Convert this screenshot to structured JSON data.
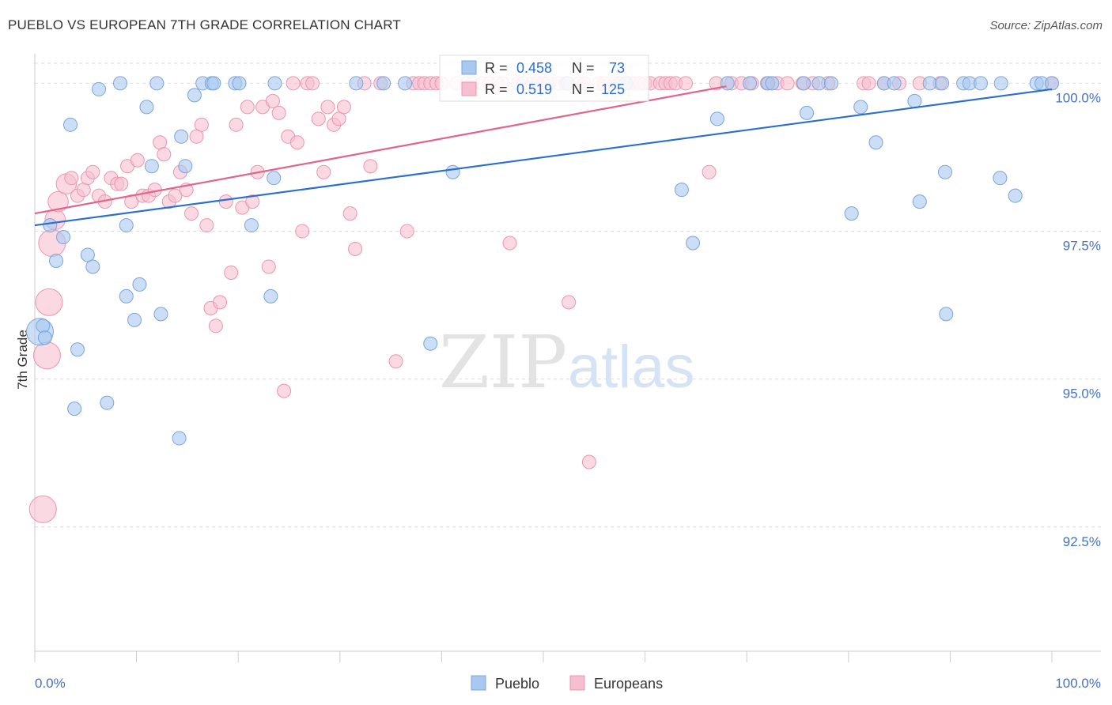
{
  "header": {
    "title": "PUEBLO VS EUROPEAN 7TH GRADE CORRELATION CHART",
    "source": "Source: ZipAtlas.com"
  },
  "watermark": {
    "zip": "ZIP",
    "atlas": "atlas"
  },
  "colors": {
    "pueblo_fill": "#a9c8ef",
    "pueblo_stroke": "#7aa5de",
    "pueblo_line": "#2a6fcf",
    "europeans_fill": "#f6bfd0",
    "europeans_stroke": "#ec95b0",
    "europeans_line": "#e0648e",
    "tick_text": "#4472c4",
    "grid": "#dddddd"
  },
  "legend": {
    "r_label": "R =",
    "n_label": "N =",
    "pueblo_r": "0.458",
    "pueblo_n": "73",
    "europeans_r": "0.519",
    "europeans_n": "125"
  },
  "chart_data": {
    "type": "scatter",
    "ylabel": "7th Grade",
    "xlim": [
      0,
      100
    ],
    "ylim": [
      90.4,
      100.5
    ],
    "x_tick_labels": [
      "0.0%",
      "100.0%"
    ],
    "y_ticks": [
      {
        "value": 92.5,
        "label": "92.5%"
      },
      {
        "value": 95.0,
        "label": "95.0%"
      },
      {
        "value": 97.5,
        "label": "97.5%"
      },
      {
        "value": 100.0,
        "label": "100.0%"
      }
    ],
    "grid": true,
    "series": [
      {
        "name": "Pueblo",
        "trend": {
          "x": [
            0,
            100
          ],
          "y": [
            97.6,
            99.9
          ]
        },
        "points": [
          [
            0.5,
            95.8,
            2
          ],
          [
            0.8,
            95.9,
            1
          ],
          [
            1.0,
            95.7,
            1
          ],
          [
            1.5,
            97.6,
            1
          ],
          [
            2.1,
            97.0,
            1
          ],
          [
            2.8,
            97.4,
            1
          ],
          [
            3.5,
            99.3,
            1
          ],
          [
            3.9,
            94.5,
            1
          ],
          [
            4.2,
            95.5,
            1
          ],
          [
            5.2,
            97.1,
            1
          ],
          [
            5.7,
            96.9,
            1
          ],
          [
            6.3,
            99.9,
            1
          ],
          [
            7.1,
            94.6,
            1
          ],
          [
            8.4,
            100.0,
            1
          ],
          [
            9.0,
            97.6,
            1
          ],
          [
            9.0,
            96.4,
            1
          ],
          [
            9.8,
            96.0,
            1
          ],
          [
            10.3,
            96.6,
            1
          ],
          [
            11.0,
            99.6,
            1
          ],
          [
            11.5,
            98.6,
            1
          ],
          [
            12.0,
            100.0,
            1
          ],
          [
            12.4,
            96.1,
            1
          ],
          [
            14.2,
            94.0,
            1
          ],
          [
            14.4,
            99.1,
            1
          ],
          [
            14.8,
            98.6,
            1
          ],
          [
            15.7,
            99.8,
            1
          ],
          [
            16.5,
            100.0,
            1
          ],
          [
            17.4,
            100.0,
            1
          ],
          [
            17.6,
            100.0,
            1
          ],
          [
            19.7,
            100.0,
            1
          ],
          [
            20.1,
            100.0,
            1
          ],
          [
            21.3,
            97.6,
            1
          ],
          [
            23.2,
            96.4,
            1
          ],
          [
            23.5,
            98.4,
            1
          ],
          [
            23.6,
            100.0,
            1
          ],
          [
            31.6,
            100.0,
            1
          ],
          [
            34.3,
            100.0,
            1
          ],
          [
            36.4,
            100.0,
            1
          ],
          [
            38.9,
            95.6,
            1
          ],
          [
            41.1,
            98.5,
            1
          ],
          [
            52.4,
            100.0,
            1
          ],
          [
            58.1,
            100.0,
            1
          ],
          [
            63.6,
            98.2,
            1
          ],
          [
            64.7,
            97.3,
            1
          ],
          [
            67.1,
            99.4,
            1
          ],
          [
            68.1,
            100.0,
            1
          ],
          [
            70.3,
            100.0,
            1
          ],
          [
            72.1,
            100.0,
            1
          ],
          [
            72.5,
            100.0,
            1
          ],
          [
            75.6,
            100.0,
            1
          ],
          [
            75.9,
            99.5,
            1
          ],
          [
            77.1,
            100.0,
            1
          ],
          [
            78.3,
            100.0,
            1
          ],
          [
            80.3,
            97.8,
            1
          ],
          [
            81.2,
            99.6,
            1
          ],
          [
            82.7,
            99.0,
            1
          ],
          [
            83.5,
            100.0,
            1
          ],
          [
            84.5,
            100.0,
            1
          ],
          [
            86.5,
            99.7,
            1
          ],
          [
            87.0,
            98.0,
            1
          ],
          [
            88.0,
            100.0,
            1
          ],
          [
            89.2,
            100.0,
            1
          ],
          [
            89.5,
            98.5,
            1
          ],
          [
            89.6,
            96.1,
            1
          ],
          [
            91.3,
            100.0,
            1
          ],
          [
            91.9,
            100.0,
            1
          ],
          [
            93.0,
            100.0,
            1
          ],
          [
            94.9,
            98.4,
            1
          ],
          [
            95.0,
            100.0,
            1
          ],
          [
            96.4,
            98.1,
            1
          ],
          [
            98.5,
            100.0,
            1
          ],
          [
            99.0,
            100.0,
            1
          ],
          [
            100.0,
            100.0,
            1
          ]
        ]
      },
      {
        "name": "Europeans",
        "trend": {
          "x": [
            0,
            68
          ],
          "y": [
            97.8,
            99.95
          ]
        },
        "points": [
          [
            0.8,
            92.8,
            2
          ],
          [
            1.2,
            95.4,
            2
          ],
          [
            1.4,
            96.3,
            2
          ],
          [
            1.7,
            97.3,
            2
          ],
          [
            2.0,
            97.7,
            1.5
          ],
          [
            2.3,
            98.0,
            1.5
          ],
          [
            3.1,
            98.3,
            1.5
          ],
          [
            3.6,
            98.4,
            1
          ],
          [
            4.2,
            98.1,
            1
          ],
          [
            4.8,
            98.2,
            1
          ],
          [
            5.2,
            98.4,
            1
          ],
          [
            5.7,
            98.5,
            1
          ],
          [
            6.3,
            98.1,
            1
          ],
          [
            6.9,
            98.0,
            1
          ],
          [
            7.5,
            98.4,
            1
          ],
          [
            8.1,
            98.3,
            1
          ],
          [
            8.5,
            98.3,
            1
          ],
          [
            9.1,
            98.6,
            1
          ],
          [
            9.5,
            98.0,
            1
          ],
          [
            10.1,
            98.7,
            1
          ],
          [
            10.6,
            98.1,
            1
          ],
          [
            11.2,
            98.1,
            1
          ],
          [
            11.8,
            98.2,
            1
          ],
          [
            12.3,
            99.0,
            1
          ],
          [
            12.7,
            98.8,
            1
          ],
          [
            13.2,
            98.0,
            1
          ],
          [
            13.8,
            98.1,
            1
          ],
          [
            14.3,
            98.5,
            1
          ],
          [
            14.9,
            98.2,
            1
          ],
          [
            15.4,
            97.8,
            1
          ],
          [
            15.9,
            99.1,
            1
          ],
          [
            16.4,
            99.3,
            1
          ],
          [
            16.9,
            97.6,
            1
          ],
          [
            17.3,
            96.2,
            1
          ],
          [
            17.8,
            95.9,
            1
          ],
          [
            18.2,
            96.3,
            1
          ],
          [
            18.8,
            98.0,
            1
          ],
          [
            19.3,
            96.8,
            1
          ],
          [
            19.8,
            99.3,
            1
          ],
          [
            20.4,
            97.9,
            1
          ],
          [
            20.9,
            99.6,
            1
          ],
          [
            21.4,
            98.0,
            1
          ],
          [
            21.9,
            98.5,
            1
          ],
          [
            22.4,
            99.6,
            1
          ],
          [
            23.0,
            96.9,
            1
          ],
          [
            23.4,
            99.7,
            1
          ],
          [
            24.0,
            99.5,
            1
          ],
          [
            24.5,
            94.8,
            1
          ],
          [
            24.9,
            99.1,
            1
          ],
          [
            25.4,
            100.0,
            1
          ],
          [
            25.8,
            99.0,
            1
          ],
          [
            26.3,
            97.5,
            1
          ],
          [
            26.8,
            100.0,
            1
          ],
          [
            27.3,
            100.0,
            1
          ],
          [
            27.9,
            99.4,
            1
          ],
          [
            28.4,
            98.5,
            1
          ],
          [
            28.8,
            99.6,
            1
          ],
          [
            29.4,
            99.3,
            1
          ],
          [
            29.9,
            99.4,
            1
          ],
          [
            30.4,
            99.6,
            1
          ],
          [
            31.0,
            97.8,
            1
          ],
          [
            31.5,
            97.2,
            1
          ],
          [
            32.4,
            100.0,
            1
          ],
          [
            33.0,
            98.6,
            1
          ],
          [
            34.0,
            100.0,
            1
          ],
          [
            35.5,
            95.3,
            1
          ],
          [
            36.6,
            97.5,
            1
          ],
          [
            37.2,
            100.0,
            1
          ],
          [
            37.8,
            100.0,
            1
          ],
          [
            38.3,
            100.0,
            1
          ],
          [
            38.9,
            100.0,
            1
          ],
          [
            39.5,
            100.0,
            1
          ],
          [
            40.0,
            100.0,
            1
          ],
          [
            41.5,
            100.0,
            1
          ],
          [
            42.5,
            100.0,
            1
          ],
          [
            43.0,
            100.0,
            1
          ],
          [
            44.0,
            100.0,
            1
          ],
          [
            44.7,
            100.0,
            1
          ],
          [
            45.5,
            100.0,
            1
          ],
          [
            46.0,
            100.0,
            1
          ],
          [
            46.7,
            97.3,
            1
          ],
          [
            47.5,
            100.0,
            1
          ],
          [
            48.0,
            100.0,
            1
          ],
          [
            48.9,
            100.0,
            1
          ],
          [
            49.5,
            100.0,
            1
          ],
          [
            50.0,
            100.0,
            1
          ],
          [
            50.5,
            100.0,
            1
          ],
          [
            51.5,
            100.0,
            1
          ],
          [
            52.2,
            100.0,
            1
          ],
          [
            52.5,
            96.3,
            1
          ],
          [
            53.5,
            100.0,
            1
          ],
          [
            54.0,
            100.0,
            1
          ],
          [
            54.5,
            93.6,
            1
          ],
          [
            55.5,
            100.0,
            1
          ],
          [
            56.0,
            100.0,
            1
          ],
          [
            57.0,
            100.0,
            1
          ],
          [
            57.5,
            100.0,
            1
          ],
          [
            58.5,
            100.0,
            1
          ],
          [
            59.0,
            100.0,
            1
          ],
          [
            59.5,
            100.0,
            1
          ],
          [
            60.0,
            100.0,
            1
          ],
          [
            60.5,
            100.0,
            1
          ],
          [
            61.5,
            100.0,
            1
          ],
          [
            62.0,
            100.0,
            1
          ],
          [
            62.5,
            100.0,
            1
          ],
          [
            63.0,
            100.0,
            1
          ],
          [
            64.0,
            100.0,
            1
          ],
          [
            66.3,
            98.5,
            1
          ],
          [
            67.0,
            100.0,
            1
          ],
          [
            68.5,
            100.0,
            1
          ],
          [
            69.5,
            100.0,
            1
          ],
          [
            70.5,
            100.0,
            1
          ],
          [
            72.0,
            100.0,
            1
          ],
          [
            73.0,
            100.0,
            1
          ],
          [
            74.0,
            100.0,
            1
          ],
          [
            75.5,
            100.0,
            1
          ],
          [
            76.5,
            100.0,
            1
          ],
          [
            78.0,
            100.0,
            1
          ],
          [
            81.5,
            100.0,
            1
          ],
          [
            82.0,
            100.0,
            1
          ],
          [
            83.5,
            100.0,
            1
          ],
          [
            85.0,
            100.0,
            1
          ],
          [
            87.0,
            100.0,
            1
          ],
          [
            89.0,
            100.0,
            1
          ],
          [
            100.0,
            100.0,
            1
          ]
        ]
      }
    ]
  }
}
